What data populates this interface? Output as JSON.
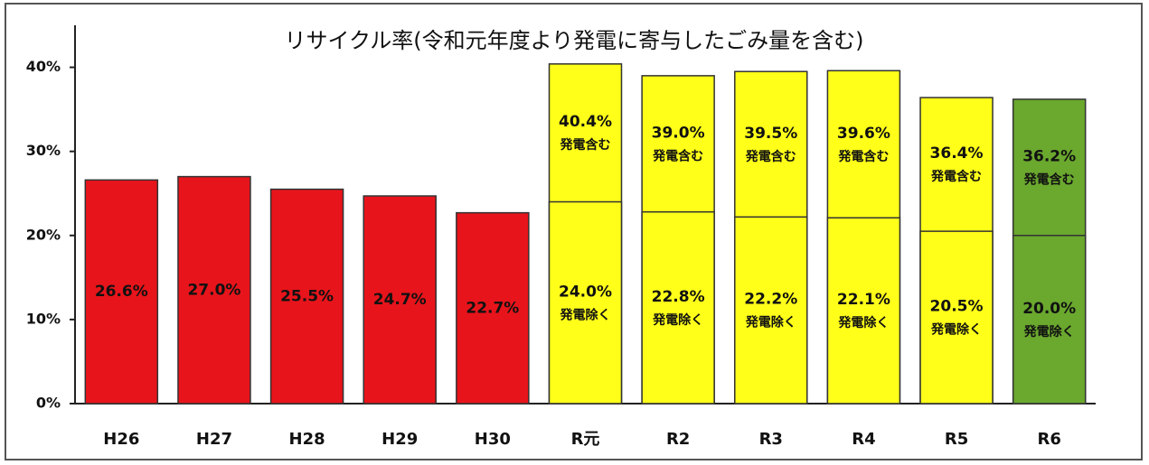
{
  "chart_data": {
    "type": "bar",
    "title": "リサイクル率(令和元年度より発電に寄与したごみ量を含む)",
    "categories": [
      "H26",
      "H27",
      "H28",
      "H29",
      "H30",
      "R元",
      "R2",
      "R3",
      "R4",
      "R5",
      "R6"
    ],
    "bar_colors": [
      "#e8141b",
      "#e8141b",
      "#e8141b",
      "#e8141b",
      "#e8141b",
      "#ffff1a",
      "#ffff1a",
      "#ffff1a",
      "#ffff1a",
      "#ffff1a",
      "#6aa82e"
    ],
    "series": [
      {
        "values": [
          26.6,
          27.0,
          25.5,
          24.7,
          22.7,
          null,
          null,
          null,
          null,
          null,
          null
        ],
        "value_labels": [
          "26.6%",
          "27.0%",
          "25.5%",
          "24.7%",
          "22.7%",
          null,
          null,
          null,
          null,
          null,
          null
        ]
      },
      {
        "name": "発電含む",
        "values": [
          null,
          null,
          null,
          null,
          null,
          40.4,
          39.0,
          39.5,
          39.6,
          36.4,
          36.2
        ],
        "value_labels": [
          null,
          null,
          null,
          null,
          null,
          "40.4%",
          "39.0%",
          "39.5%",
          "39.6%",
          "36.4%",
          "36.2%"
        ]
      },
      {
        "name": "発電除く",
        "values": [
          null,
          null,
          null,
          null,
          null,
          24.0,
          22.8,
          22.2,
          22.1,
          20.5,
          20.0
        ],
        "value_labels": [
          null,
          null,
          null,
          null,
          null,
          "24.0%",
          "22.8%",
          "22.2%",
          "22.1%",
          "20.5%",
          "20.0%"
        ]
      }
    ],
    "ylim": [
      0,
      45
    ],
    "yticks": [
      {
        "value": 0,
        "label": "0%"
      },
      {
        "value": 10,
        "label": "10%"
      },
      {
        "value": 20,
        "label": "20%"
      },
      {
        "value": 30,
        "label": "30%"
      },
      {
        "value": 40,
        "label": "40%"
      }
    ]
  }
}
